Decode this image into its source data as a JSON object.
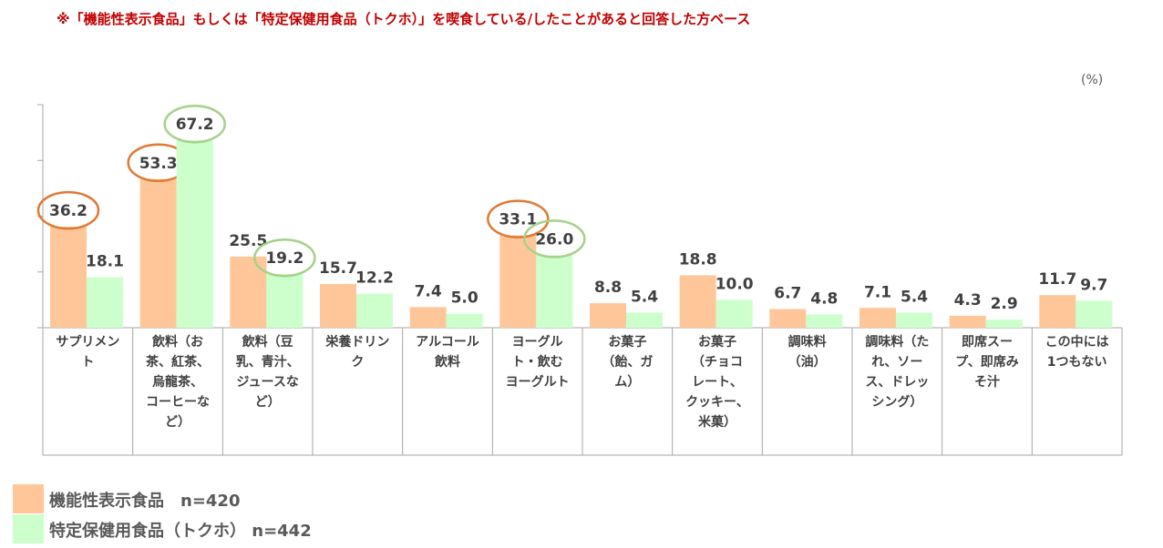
{
  "note": "※「機能性表示食品」もしくは「特定保健用食品（トクホ）」を喫食している/したことがあると回答した方ベース",
  "unit_label": "(%)",
  "colors": {
    "series1": "#ffc799",
    "series2": "#ccffcc",
    "circle_orange": "#e07a35",
    "circle_green": "#a6d18a",
    "axis": "#a6a6a6",
    "text": "#404040"
  },
  "legend": [
    {
      "label": "機能性表示食品　n=420"
    },
    {
      "label": "特定保健用食品（トクホ）  n=442"
    }
  ],
  "chart_data": {
    "type": "bar",
    "ylim": [
      0,
      80
    ],
    "categories": [
      [
        "サプリメン",
        "ト"
      ],
      [
        "飲料（お",
        "茶、紅茶、",
        "烏龍茶、",
        "コーヒーな",
        "ど）"
      ],
      [
        "飲料（豆",
        "乳、青汁、",
        "ジュースな",
        "ど）"
      ],
      [
        "栄養ドリン",
        "ク"
      ],
      [
        "アルコール",
        "飲料"
      ],
      [
        "ヨーグル",
        "ト・飲む",
        "ヨーグルト"
      ],
      [
        "お菓子",
        "（飴、ガ",
        "ム）"
      ],
      [
        "お菓子",
        "（チョコ",
        "レート、",
        "クッキー、",
        "米菓）"
      ],
      [
        "調味料",
        "（油）"
      ],
      [
        "調味料（た",
        "れ、ソー",
        "ス、ドレッ",
        "シング）"
      ],
      [
        "即席スー",
        "プ、即席み",
        "そ汁"
      ],
      [
        "この中には",
        "1つもない"
      ]
    ],
    "series": [
      {
        "name": "機能性表示食品　n=420",
        "values": [
          36.2,
          53.3,
          25.5,
          15.7,
          7.4,
          33.1,
          8.8,
          18.8,
          6.7,
          7.1,
          4.3,
          11.7
        ],
        "labels": [
          "36.2",
          "53.3",
          "25.5",
          "15.7",
          "7.4",
          "33.1",
          "8.8",
          "18.8",
          "6.7",
          "7.1",
          "4.3",
          "11.7"
        ],
        "circled": [
          true,
          true,
          false,
          false,
          false,
          true,
          false,
          false,
          false,
          false,
          false,
          false
        ]
      },
      {
        "name": "特定保健用食品（トクホ）  n=442",
        "values": [
          18.1,
          67.2,
          19.2,
          12.2,
          5.0,
          26.0,
          5.4,
          10.0,
          4.8,
          5.4,
          2.9,
          9.7
        ],
        "labels": [
          "18.1",
          "67.2",
          "19.2",
          "12.2",
          "5.0",
          "26.0",
          "5.4",
          "10.0",
          "4.8",
          "5.4",
          "2.9",
          "9.7"
        ],
        "circled": [
          false,
          true,
          true,
          false,
          false,
          true,
          false,
          false,
          false,
          false,
          false,
          false
        ]
      }
    ]
  }
}
